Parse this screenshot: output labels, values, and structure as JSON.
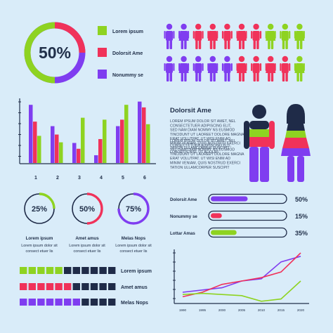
{
  "colors": {
    "green": "#8ed321",
    "red": "#f0325a",
    "purple": "#7f3df0",
    "navy": "#1f2b48",
    "bg": "#d9ecf9"
  },
  "donut_main": {
    "value": "50%",
    "legend": [
      {
        "label": "Lorem ipsum",
        "color": "#8ed321"
      },
      {
        "label": "Dolorsit Ame",
        "color": "#f0325a"
      },
      {
        "label": "Nonummy se",
        "color": "#7f3df0"
      }
    ]
  },
  "people_icons": {
    "row1": [
      "purple",
      "purple",
      "red",
      "red",
      "red",
      "red",
      "red",
      "green",
      "green",
      "green"
    ],
    "row2": [
      "purple",
      "purple",
      "purple",
      "purple",
      "purple",
      "red",
      "red",
      "red",
      "red",
      "green"
    ]
  },
  "gender_block": {
    "title": "Dolorsit Ame",
    "para1": [
      "LOREM IPSUM DOLOR SIT AMET, NEL",
      "CONSECTETUER ADIPISCING ELIT,",
      "SED NAM DIAM NOMMY NS EUSMOD",
      "TINCIDUNT UT LAOREET DOLORE MAGNA",
      "ERAT VOLUTPAT. UT WISI ENIM AD",
      "MINIM VENIAM, QUIS NOSTRUD EXERCI",
      "TATION ULLAMCORPER SUSCIPIT",
      "LOBORTIS NISL UT ALIQUIP."
    ],
    "para2": [
      "LOREM IPSUM DOLOR SIT AMET, NEL",
      "CONSECTETUER ADIPISCING ELIT,",
      "SED NAM DIAM NOMMY NS EUSMOD",
      "TINCIDUNT UT LAOREET DOLORE MAGNA",
      "ERAT VOLUTPAT. UT WISI ENIM AD",
      "MINIM VENIAM, QUIS NOSTRUD EXERCI",
      "TATION ULLAMCORPER SUSCIPIT"
    ]
  },
  "small_donuts": [
    {
      "value": "25%",
      "fraction": 0.25,
      "color": "#8ed321",
      "title": "Lorem ipsum",
      "lines": [
        "Lorem ipsum dolor sit",
        "consect etuer lis"
      ]
    },
    {
      "value": "50%",
      "fraction": 0.5,
      "color": "#f0325a",
      "title": "Amet amus",
      "lines": [
        "Lorem ipsum dolor sit",
        "consect etuer lis"
      ]
    },
    {
      "value": "75%",
      "fraction": 0.75,
      "color": "#7f3df0",
      "title": "Melas Nops",
      "lines": [
        "Lorem ipsum dolor sit",
        "consect etuer lis"
      ]
    }
  ],
  "progress_bars": [
    {
      "label": "Dolorsit Ame",
      "value": "50%",
      "fraction": 0.5,
      "color": "#7f3df0"
    },
    {
      "label": "Nonummy se",
      "value": "15%",
      "fraction": 0.15,
      "color": "#f0325a"
    },
    {
      "label": "Lottar Amas",
      "value": "35%",
      "fraction": 0.35,
      "color": "#8ed321"
    }
  ],
  "block_rows": [
    {
      "label": "Lorem ipsum",
      "color": "#8ed321",
      "filled": 5
    },
    {
      "label": "Amet amus",
      "color": "#f0325a",
      "filled": 6
    },
    {
      "label": "Melas Nops",
      "color": "#7f3df0",
      "filled": 7
    }
  ],
  "chart_data": [
    {
      "type": "bar",
      "categories": [
        "1",
        "2",
        "3",
        "4",
        "5",
        "6"
      ],
      "series": [
        {
          "values": [
            90,
            57,
            31,
            12,
            57,
            95
          ],
          "color": "#7f3df0"
        },
        {
          "values": [
            64,
            44,
            22,
            37,
            67,
            86
          ],
          "color": "#f0325a"
        },
        {
          "values": [
            42,
            32,
            70,
            67,
            90,
            60
          ],
          "color": "#8ed321"
        }
      ],
      "ylim": [
        0,
        100
      ],
      "xlabel": "",
      "ylabel": "",
      "title": "",
      "grid": false
    },
    {
      "type": "line",
      "x": [
        "1990",
        "1995",
        "2000",
        "2005",
        "2010",
        "2015",
        "2020"
      ],
      "series": [
        {
          "values": [
            10,
            12,
            14,
            20,
            22,
            37,
            42
          ],
          "color": "#7f3df0"
        },
        {
          "values": [
            6,
            10,
            17,
            20,
            23,
            28,
            45
          ],
          "color": "#f0325a"
        },
        {
          "values": [
            8,
            9,
            8,
            7,
            2,
            4,
            20
          ],
          "color": "#8ed321"
        }
      ],
      "ylim": [
        0,
        50
      ],
      "xlabel": "",
      "ylabel": "",
      "title": "",
      "grid": false
    }
  ]
}
